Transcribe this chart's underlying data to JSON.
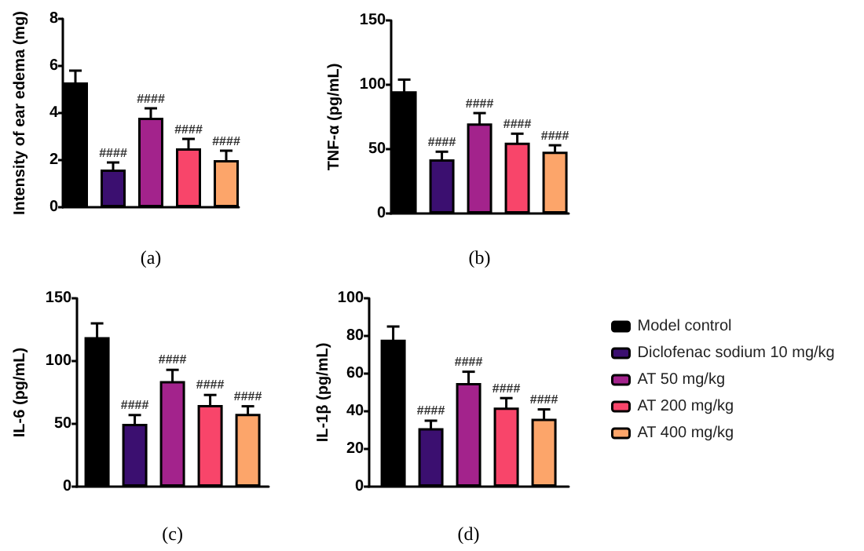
{
  "chart_data": [
    {
      "type": "bar",
      "xlabel": "(a)",
      "ylabel": "Intensity of ear edema (mg)",
      "categories": [
        null
      ],
      "ylim": [
        0,
        8
      ],
      "yticks": [
        0,
        2,
        4,
        6,
        8
      ],
      "tick_labels": "y",
      "grid": false,
      "legend": false,
      "series": [
        {
          "color": "#000000",
          "values": [
            5.3
          ],
          "errors": [
            0.5
          ],
          "value_labels": [
            null
          ]
        },
        {
          "color": "#3b0f70",
          "values": [
            1.6
          ],
          "errors": [
            0.3
          ],
          "value_labels": [
            "####"
          ]
        },
        {
          "color": "#a3238c",
          "values": [
            3.8
          ],
          "errors": [
            0.4
          ],
          "value_labels": [
            "####"
          ]
        },
        {
          "color": "#f8456a",
          "values": [
            2.5
          ],
          "errors": [
            0.4
          ],
          "value_labels": [
            "####"
          ]
        },
        {
          "color": "#fca56a",
          "values": [
            2.0
          ],
          "errors": [
            0.4
          ],
          "value_labels": [
            "####"
          ]
        }
      ]
    },
    {
      "type": "bar",
      "xlabel": "(b)",
      "ylabel": "TNF-α (pg/mL)",
      "categories": [
        null
      ],
      "ylim": [
        0,
        150
      ],
      "yticks": [
        0,
        50,
        100,
        150
      ],
      "tick_labels": "y",
      "grid": false,
      "legend": false,
      "series": [
        {
          "color": "#000000",
          "values": [
            95
          ],
          "errors": [
            9
          ],
          "value_labels": [
            null
          ]
        },
        {
          "color": "#3b0f70",
          "values": [
            42
          ],
          "errors": [
            6
          ],
          "value_labels": [
            "####"
          ]
        },
        {
          "color": "#a3238c",
          "values": [
            70
          ],
          "errors": [
            8
          ],
          "value_labels": [
            "####"
          ]
        },
        {
          "color": "#f8456a",
          "values": [
            55
          ],
          "errors": [
            7
          ],
          "value_labels": [
            "####"
          ]
        },
        {
          "color": "#fca56a",
          "values": [
            48
          ],
          "errors": [
            5
          ],
          "value_labels": [
            "####"
          ]
        }
      ]
    },
    {
      "type": "bar",
      "xlabel": "(c)",
      "ylabel": "IL-6 (pg/mL)",
      "categories": [
        null
      ],
      "ylim": [
        0,
        150
      ],
      "yticks": [
        0,
        50,
        100,
        150
      ],
      "tick_labels": "y",
      "grid": false,
      "legend": false,
      "series": [
        {
          "color": "#000000",
          "values": [
            119
          ],
          "errors": [
            11
          ],
          "value_labels": [
            null
          ]
        },
        {
          "color": "#3b0f70",
          "values": [
            50
          ],
          "errors": [
            7
          ],
          "value_labels": [
            "####"
          ]
        },
        {
          "color": "#a3238c",
          "values": [
            84
          ],
          "errors": [
            9
          ],
          "value_labels": [
            "####"
          ]
        },
        {
          "color": "#f8456a",
          "values": [
            65
          ],
          "errors": [
            8
          ],
          "value_labels": [
            "####"
          ]
        },
        {
          "color": "#fca56a",
          "values": [
            58
          ],
          "errors": [
            6
          ],
          "value_labels": [
            "####"
          ]
        }
      ]
    },
    {
      "type": "bar",
      "xlabel": "(d)",
      "ylabel": "IL-1β (pg/mL)",
      "categories": [
        null
      ],
      "ylim": [
        0,
        100
      ],
      "yticks": [
        0,
        20,
        40,
        60,
        80,
        100
      ],
      "tick_labels": "y",
      "grid": false,
      "legend": "right",
      "series": [
        {
          "name": "Model control",
          "color": "#000000",
          "values": [
            78
          ],
          "errors": [
            7
          ],
          "value_labels": [
            null
          ]
        },
        {
          "name": "Diclofenac sodium 10 mg/kg",
          "color": "#3b0f70",
          "values": [
            31
          ],
          "errors": [
            4
          ],
          "value_labels": [
            "####"
          ]
        },
        {
          "name": "AT 50 mg/kg",
          "color": "#a3238c",
          "values": [
            55
          ],
          "errors": [
            6
          ],
          "value_labels": [
            "####"
          ]
        },
        {
          "name": "AT 200 mg/kg",
          "color": "#f8456a",
          "values": [
            42
          ],
          "errors": [
            5
          ],
          "value_labels": [
            "####"
          ]
        },
        {
          "name": "AT 400 mg/kg",
          "color": "#fca56a",
          "values": [
            36
          ],
          "errors": [
            5
          ],
          "value_labels": [
            "####"
          ]
        }
      ]
    }
  ]
}
